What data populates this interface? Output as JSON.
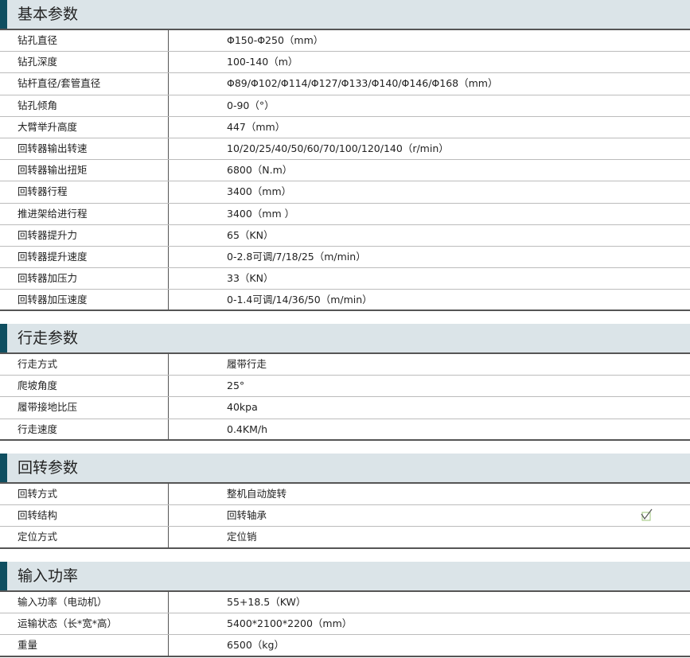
{
  "sections": [
    {
      "title": "基本参数",
      "rows": [
        {
          "label": "钻孔直径",
          "value": "Φ150-Φ250（mm）"
        },
        {
          "label": "钻孔深度",
          "value": "100-140（m）"
        },
        {
          "label": "钻杆直径/套管直径",
          "value": "Φ89/Φ102/Φ114/Φ127/Φ133/Φ140/Φ146/Φ168（mm）"
        },
        {
          "label": "钻孔倾角",
          "value": "0-90（°）"
        },
        {
          "label": "大臂举升高度",
          "value": "447（mm）"
        },
        {
          "label": "回转器输出转速",
          "value": "10/20/25/40/50/60/70/100/120/140（r/min）"
        },
        {
          "label": "回转器输出扭矩",
          "value": "6800（N.m）"
        },
        {
          "label": "回转器行程",
          "value": "3400（mm）"
        },
        {
          "label": "推进架给进行程",
          "value": "3400（mm ）"
        },
        {
          "label": "回转器提升力",
          "value": "65（KN）"
        },
        {
          "label": "回转器提升速度",
          "value": "0-2.8可调/7/18/25（m/min）"
        },
        {
          "label": "回转器加压力",
          "value": "33（KN）"
        },
        {
          "label": "回转器加压速度",
          "value": "0-1.4可调/14/36/50（m/min）"
        }
      ]
    },
    {
      "title": "行走参数",
      "rows": [
        {
          "label": "行走方式",
          "value": "履带行走"
        },
        {
          "label": "爬坡角度",
          "value": "25°"
        },
        {
          "label": "履带接地比压",
          "value": "40kpa"
        },
        {
          "label": "行走速度",
          "value": "0.4KM/h"
        }
      ]
    },
    {
      "title": "回转参数",
      "rows": [
        {
          "label": "回转方式",
          "value": "整机自动旋转"
        },
        {
          "label": "回转结构",
          "value": "回转轴承",
          "icon": "checkmark-icon"
        },
        {
          "label": "定位方式",
          "value": "定位销"
        }
      ]
    },
    {
      "title": "输入功率",
      "rows": [
        {
          "label": "输入功率（电动机）",
          "value": "55+18.5（KW）"
        },
        {
          "label": "运输状态（长*宽*高）",
          "value": "5400*2100*2200（mm）"
        },
        {
          "label": "重量",
          "value": "6500（kg）"
        }
      ]
    }
  ],
  "colors": {
    "header_bg": "#dbe4e8",
    "header_accent": "#0f4e60"
  }
}
